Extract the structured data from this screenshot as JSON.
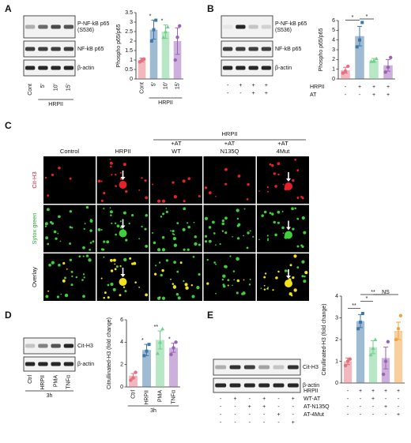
{
  "panels": [
    "A",
    "B",
    "C",
    "D",
    "E"
  ],
  "blots": [
    {
      "rows": [
        [
          "P-NF-kB p65",
          "(S536)"
        ],
        [
          "NF-kB p65"
        ],
        [
          "β-actin"
        ]
      ],
      "lanes": [
        "Cont",
        "5'",
        "10'",
        "15'"
      ],
      "group": "HRPII"
    },
    {
      "rows": [
        [
          "P-NF-kB p65",
          "(S536)"
        ],
        [
          "NF-kB p65"
        ],
        [
          "β-actin"
        ]
      ],
      "lane_signs": [
        [
          "-",
          "+",
          "+",
          "+"
        ],
        [
          "-",
          "-",
          "+",
          "+"
        ]
      ]
    },
    {
      "rows": [
        [
          "Cit-H3"
        ],
        [
          "β-actin"
        ]
      ],
      "lanes": [
        "Ctrl",
        "HRPII",
        "PMA",
        "TNFα"
      ],
      "group": "3h"
    },
    {
      "rows": [
        [
          "Cit-H3"
        ],
        [
          "β-actin"
        ]
      ],
      "lane_signs": [
        [
          "-",
          "+",
          "-",
          "+",
          "-",
          "+"
        ],
        [
          "-",
          "-",
          "+",
          "+",
          "-",
          "-"
        ],
        [
          "-",
          "-",
          "-",
          "-",
          "+",
          "-"
        ],
        [
          "-",
          "-",
          "-",
          "-",
          "-",
          "+"
        ]
      ]
    }
  ],
  "microscopy": {
    "group": "HRPII",
    "columns": [
      [
        "Control"
      ],
      [
        "HRPII"
      ],
      [
        "+AT",
        "WT"
      ],
      [
        "+AT",
        "N135Q"
      ],
      [
        "+AT",
        "4Mut"
      ]
    ],
    "rows": [
      "Cit-H3",
      "Sytox green",
      "Overlay"
    ]
  },
  "chart_data": [
    {
      "type": "bar",
      "ylabel": "Phospho p65/p65",
      "categories": [
        "Cont",
        "5'",
        "10'",
        "15'"
      ],
      "group": {
        "label": "HRPII",
        "span": [
          1,
          3
        ]
      },
      "colors": [
        "#e8707e",
        "#3f78a8",
        "#6fd08c",
        "#9a62b8"
      ],
      "values": [
        1.0,
        2.6,
        2.5,
        2.0
      ],
      "errors": [
        0.1,
        0.5,
        0.35,
        0.7
      ],
      "points": [
        [
          0.9,
          1.0,
          1.05
        ],
        [
          2.0,
          2.6,
          3.1
        ],
        [
          2.2,
          2.5,
          2.75
        ],
        [
          1.0,
          2.2,
          2.8
        ]
      ],
      "stars": [
        null,
        "*",
        "*",
        null
      ],
      "ylim": [
        0,
        3.5
      ],
      "yticks": [
        0,
        0.5,
        1,
        1.5,
        2,
        2.5,
        3,
        3.5
      ]
    },
    {
      "type": "bar",
      "ylabel": "Phospho p65/p65",
      "categories": [
        null,
        null,
        null,
        null
      ],
      "conditions": [
        {
          "name": "HRPII",
          "signs": [
            "-",
            "+",
            "+",
            "+"
          ]
        },
        {
          "name": "AT",
          "signs": [
            "-",
            "-",
            "+",
            "+"
          ]
        }
      ],
      "colors": [
        "#e8707e",
        "#3f78a8",
        "#6fd08c",
        "#9a62b8"
      ],
      "values": [
        0.9,
        4.4,
        1.9,
        1.4
      ],
      "errors": [
        0.3,
        1.0,
        0.2,
        0.6
      ],
      "points": [
        [
          0.6,
          0.8,
          1.3
        ],
        [
          3.3,
          4.0,
          5.8
        ],
        [
          1.8,
          1.9,
          2.1
        ],
        [
          0.7,
          1.2,
          2.2
        ]
      ],
      "comparisons": [
        {
          "groups": [
            0,
            1
          ],
          "label": "*"
        },
        {
          "groups": [
            1,
            2
          ],
          "label": "*"
        }
      ],
      "ylim": [
        0,
        6
      ],
      "yticks": [
        0,
        1,
        2,
        3,
        4,
        5,
        6
      ]
    },
    {
      "type": "bar",
      "ylabel": "Citrullinated-H3 (fold change)",
      "categories": [
        "Ctrl",
        "HRPII",
        "PMA",
        "TNFα"
      ],
      "group": {
        "label": "3h",
        "span": [
          0,
          3
        ]
      },
      "colors": [
        "#e8707e",
        "#3f78a8",
        "#6fd08c",
        "#9a62b8"
      ],
      "values": [
        1.0,
        3.3,
        4.2,
        3.5
      ],
      "errors": [
        0.2,
        0.5,
        0.8,
        0.4
      ],
      "points": [
        [
          0.6,
          0.8,
          1.3
        ],
        [
          2.8,
          3.2,
          3.8
        ],
        [
          3.0,
          4.0,
          5.2
        ],
        [
          2.9,
          3.5,
          4.0
        ]
      ],
      "stars": [
        null,
        "*",
        "**",
        "*"
      ],
      "ylim": [
        0,
        6
      ],
      "yticks": [
        0,
        2,
        4,
        6
      ]
    },
    {
      "type": "bar",
      "ylabel": "Citrullinated-H3 (fold change)",
      "categories": [
        null,
        null,
        null,
        null,
        null
      ],
      "conditions": [
        {
          "name": "HRPII",
          "signs": [
            "-",
            "+",
            "+",
            "+",
            "+"
          ]
        },
        {
          "name": "WT-AT",
          "signs": [
            "-",
            "-",
            "+",
            "-",
            "-"
          ]
        },
        {
          "name": "AT-N135Q",
          "signs": [
            "-",
            "-",
            "-",
            "+",
            "-"
          ]
        },
        {
          "name": "AT-4Mut",
          "signs": [
            "-",
            "-",
            "-",
            "-",
            "+"
          ]
        }
      ],
      "colors": [
        "#e8707e",
        "#3f78a8",
        "#6fd08c",
        "#9a62b8",
        "#f4a03c"
      ],
      "values": [
        1.0,
        2.85,
        1.65,
        1.15,
        2.4
      ],
      "errors": [
        0.15,
        0.3,
        0.3,
        0.5,
        0.4
      ],
      "points": [
        [
          0.8,
          1.0,
          1.1
        ],
        [
          2.5,
          2.8,
          3.2
        ],
        [
          1.3,
          1.6,
          2.0
        ],
        [
          0.4,
          1.0,
          1.9
        ],
        [
          2.0,
          2.5,
          3.1
        ]
      ],
      "comparisons": [
        {
          "groups": [
            0,
            1
          ],
          "label": "**"
        },
        {
          "groups": [
            1,
            2
          ],
          "label": "*"
        },
        {
          "groups": [
            2,
            4
          ],
          "label": "NS"
        },
        {
          "groups": [
            1,
            3
          ],
          "label": "**"
        }
      ],
      "ylim": [
        0,
        4
      ],
      "yticks": [
        0,
        1,
        2,
        3,
        4
      ]
    }
  ]
}
